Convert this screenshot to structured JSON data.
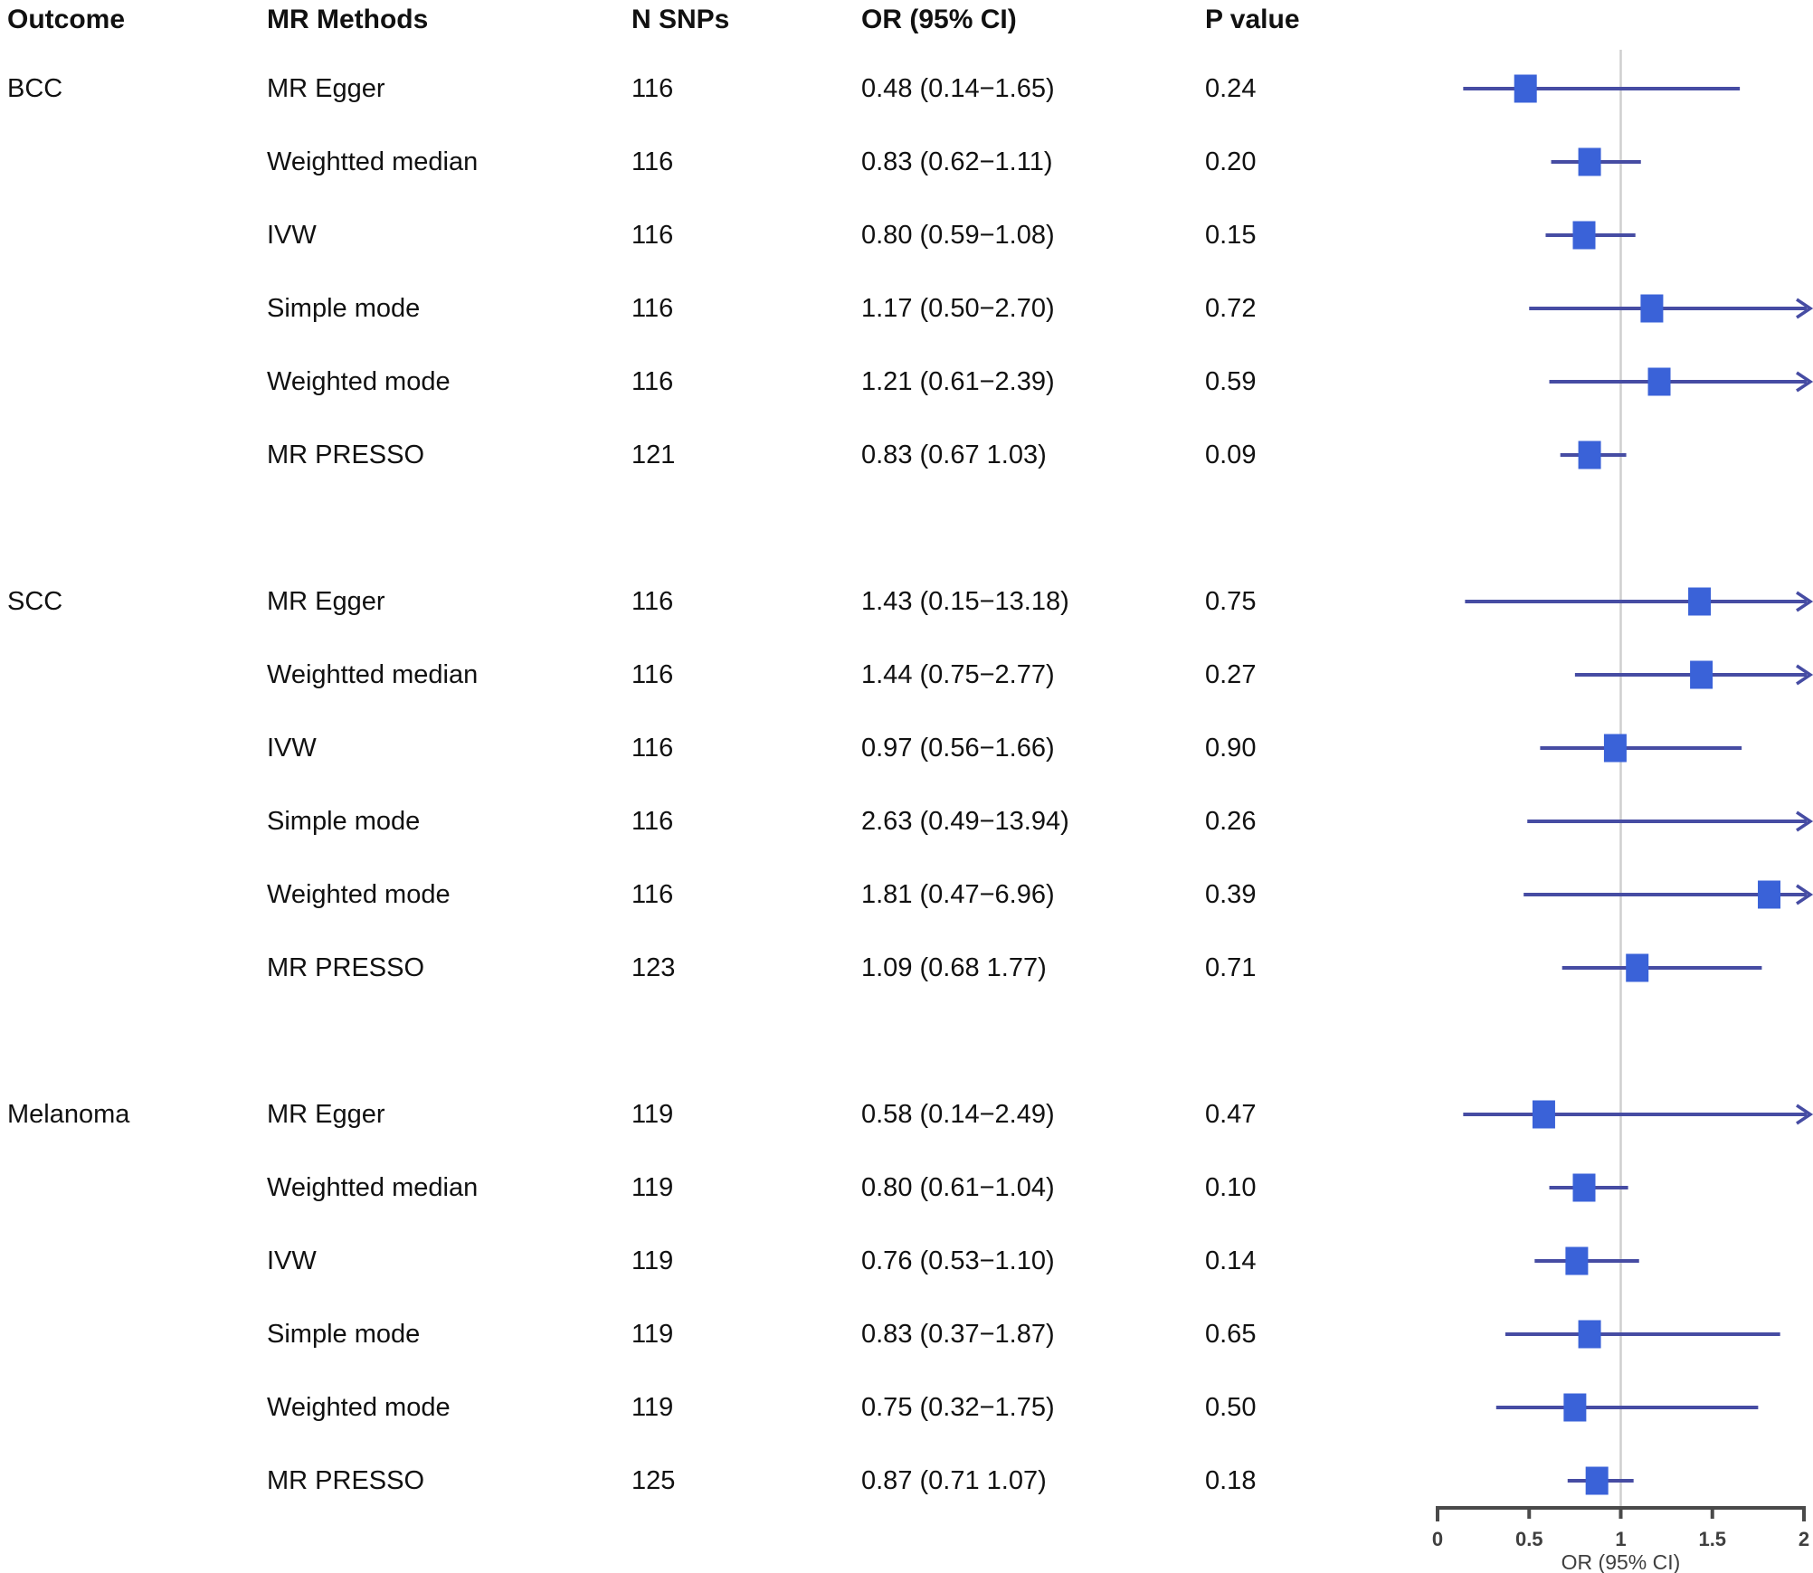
{
  "header": {
    "outcome": "Outcome",
    "methods": "MR Methods",
    "n_snps": "N SNPs",
    "or_ci": "OR (95% CI)",
    "p_value": "P value"
  },
  "axis": {
    "min": 0,
    "max": 2,
    "ticks": [
      0,
      0.5,
      1,
      1.5,
      2
    ],
    "tick_labels": [
      "0",
      "0.5",
      "1",
      "1.5",
      "2"
    ],
    "label": "OR (95% CI)",
    "reference": 1
  },
  "colors": {
    "marker": "#3A62D8",
    "ci_line": "#464CA3",
    "axis": "#4A4A4A",
    "tick_text": "#3F3F3F",
    "reference_line": "#CFCFCF",
    "text": "#111111"
  },
  "chart_data": {
    "type": "forest",
    "title": "",
    "xlabel": "OR (95% CI)",
    "xlim": [
      0,
      2
    ],
    "reference_line": 1,
    "legend": "none",
    "grid": "off",
    "groups": [
      {
        "outcome": "BCC",
        "rows": [
          {
            "method": "MR Egger",
            "n_snps": "116",
            "or_ci": "0.48 (0.14−1.65)",
            "p_value": "0.24",
            "or": 0.48,
            "ci_low": 0.14,
            "ci_high": 1.65
          },
          {
            "method": "Weightted median",
            "n_snps": "116",
            "or_ci": "0.83 (0.62−1.11)",
            "p_value": "0.20",
            "or": 0.83,
            "ci_low": 0.62,
            "ci_high": 1.11
          },
          {
            "method": "IVW",
            "n_snps": "116",
            "or_ci": "0.80 (0.59−1.08)",
            "p_value": "0.15",
            "or": 0.8,
            "ci_low": 0.59,
            "ci_high": 1.08
          },
          {
            "method": "Simple mode",
            "n_snps": "116",
            "or_ci": "1.17 (0.50−2.70)",
            "p_value": "0.72",
            "or": 1.17,
            "ci_low": 0.5,
            "ci_high": 2.7
          },
          {
            "method": "Weighted mode",
            "n_snps": "116",
            "or_ci": "1.21 (0.61−2.39)",
            "p_value": "0.59",
            "or": 1.21,
            "ci_low": 0.61,
            "ci_high": 2.39
          },
          {
            "method": "MR PRESSO",
            "n_snps": "121",
            "or_ci": "0.83 (0.67 1.03)",
            "p_value": "0.09",
            "or": 0.83,
            "ci_low": 0.67,
            "ci_high": 1.03
          }
        ]
      },
      {
        "outcome": "SCC",
        "rows": [
          {
            "method": "MR Egger",
            "n_snps": "116",
            "or_ci": "1.43 (0.15−13.18)",
            "p_value": "0.75",
            "or": 1.43,
            "ci_low": 0.15,
            "ci_high": 13.18
          },
          {
            "method": "Weightted median",
            "n_snps": "116",
            "or_ci": "1.44 (0.75−2.77)",
            "p_value": "0.27",
            "or": 1.44,
            "ci_low": 0.75,
            "ci_high": 2.77
          },
          {
            "method": "IVW",
            "n_snps": "116",
            "or_ci": "0.97 (0.56−1.66)",
            "p_value": "0.90",
            "or": 0.97,
            "ci_low": 0.56,
            "ci_high": 1.66
          },
          {
            "method": "Simple mode",
            "n_snps": "116",
            "or_ci": "2.63 (0.49−13.94)",
            "p_value": "0.26",
            "or": 2.63,
            "ci_low": 0.49,
            "ci_high": 13.94
          },
          {
            "method": "Weighted mode",
            "n_snps": "116",
            "or_ci": "1.81 (0.47−6.96)",
            "p_value": "0.39",
            "or": 1.81,
            "ci_low": 0.47,
            "ci_high": 6.96
          },
          {
            "method": "MR PRESSO",
            "n_snps": "123",
            "or_ci": "1.09 (0.68 1.77)",
            "p_value": "0.71",
            "or": 1.09,
            "ci_low": 0.68,
            "ci_high": 1.77
          }
        ]
      },
      {
        "outcome": "Melanoma",
        "rows": [
          {
            "method": "MR Egger",
            "n_snps": "119",
            "or_ci": "0.58 (0.14−2.49)",
            "p_value": "0.47",
            "or": 0.58,
            "ci_low": 0.14,
            "ci_high": 2.49
          },
          {
            "method": "Weightted median",
            "n_snps": "119",
            "or_ci": "0.80 (0.61−1.04)",
            "p_value": "0.10",
            "or": 0.8,
            "ci_low": 0.61,
            "ci_high": 1.04
          },
          {
            "method": "IVW",
            "n_snps": "119",
            "or_ci": "0.76 (0.53−1.10)",
            "p_value": "0.14",
            "or": 0.76,
            "ci_low": 0.53,
            "ci_high": 1.1
          },
          {
            "method": "Simple mode",
            "n_snps": "119",
            "or_ci": "0.83 (0.37−1.87)",
            "p_value": "0.65",
            "or": 0.83,
            "ci_low": 0.37,
            "ci_high": 1.87
          },
          {
            "method": "Weighted mode",
            "n_snps": "119",
            "or_ci": "0.75 (0.32−1.75)",
            "p_value": "0.50",
            "or": 0.75,
            "ci_low": 0.32,
            "ci_high": 1.75
          },
          {
            "method": "MR PRESSO",
            "n_snps": "125",
            "or_ci": "0.87 (0.71 1.07)",
            "p_value": "0.18",
            "or": 0.87,
            "ci_low": 0.71,
            "ci_high": 1.07
          }
        ]
      }
    ]
  }
}
